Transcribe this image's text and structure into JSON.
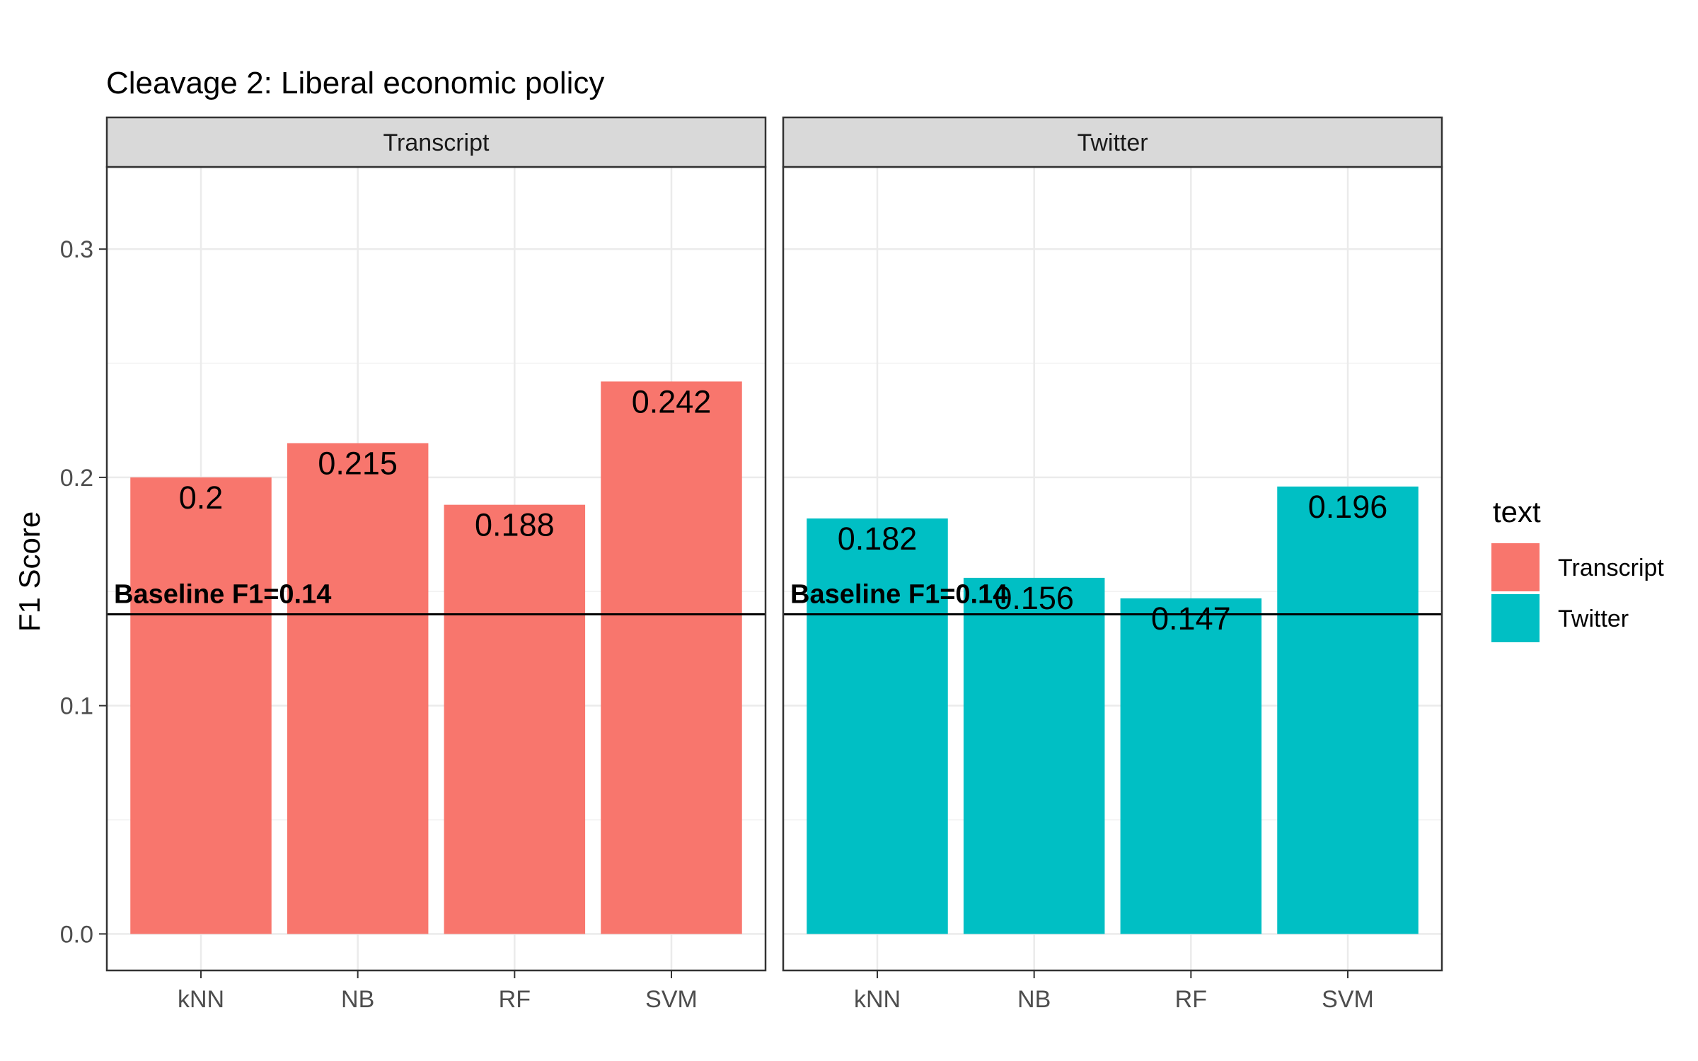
{
  "chart_data": {
    "type": "bar",
    "title": "Cleavage 2: Liberal economic policy",
    "ylabel": "F1 Score",
    "xlabel": "",
    "ylim": [
      -0.016,
      0.336
    ],
    "yticks": [
      0.0,
      0.1,
      0.2,
      0.3
    ],
    "ytick_labels": [
      "0.0",
      "0.1",
      "0.2",
      "0.3"
    ],
    "grid": true,
    "categories": [
      "kNN",
      "NB",
      "RF",
      "SVM"
    ],
    "facets": [
      {
        "name": "Transcript",
        "color": "#F8766D",
        "values": [
          0.2,
          0.215,
          0.188,
          0.242
        ],
        "labels": [
          "0.2",
          "0.215",
          "0.188",
          "0.242"
        ]
      },
      {
        "name": "Twitter",
        "color": "#00BFC4",
        "values": [
          0.182,
          0.156,
          0.147,
          0.196
        ],
        "labels": [
          "0.182",
          "0.156",
          "0.147",
          "0.196"
        ]
      }
    ],
    "baseline": {
      "value": 0.14,
      "label": "Baseline F1=0.14"
    },
    "legend": {
      "title": "text",
      "position": "right",
      "items": [
        {
          "label": "Transcript",
          "color": "#F8766D"
        },
        {
          "label": "Twitter",
          "color": "#00BFC4"
        }
      ]
    }
  }
}
